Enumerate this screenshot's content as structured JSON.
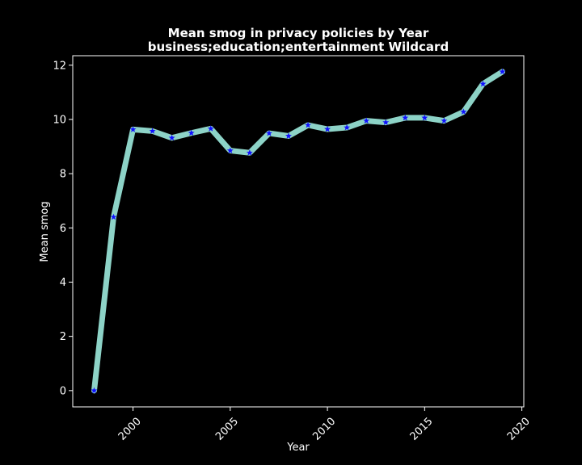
{
  "chart_data": {
    "type": "line",
    "title_line1": "Mean smog in privacy policies by Year",
    "title_line2": "business;education;entertainment Wildcard",
    "xlabel": "Year",
    "ylabel": "Mean smog",
    "xlim": [
      1996.9,
      2020.1
    ],
    "ylim": [
      -0.6,
      12.35
    ],
    "x_ticks": [
      2000,
      2005,
      2010,
      2015,
      2020
    ],
    "y_ticks": [
      0,
      2,
      4,
      6,
      8,
      10,
      12
    ],
    "x_tick_labels": [
      "2000",
      "2005",
      "2010",
      "2015",
      "2020"
    ],
    "y_tick_labels": [
      "0",
      "2",
      "4",
      "6",
      "8",
      "10",
      "12"
    ],
    "grid": false,
    "x": [
      1998,
      1999,
      2000,
      2001,
      2002,
      2003,
      2004,
      2005,
      2006,
      2007,
      2008,
      2009,
      2010,
      2011,
      2012,
      2013,
      2014,
      2015,
      2016,
      2017,
      2018,
      2019
    ],
    "y": [
      0.0,
      6.4,
      9.63,
      9.57,
      9.32,
      9.5,
      9.66,
      8.85,
      8.77,
      9.49,
      9.39,
      9.79,
      9.64,
      9.7,
      9.95,
      9.89,
      10.06,
      10.06,
      9.95,
      10.28,
      11.31,
      11.76
    ],
    "line_color": "#8dd3c7",
    "marker_color": "#1010ff",
    "axes_color": "#ffffff",
    "background": "#000000"
  }
}
